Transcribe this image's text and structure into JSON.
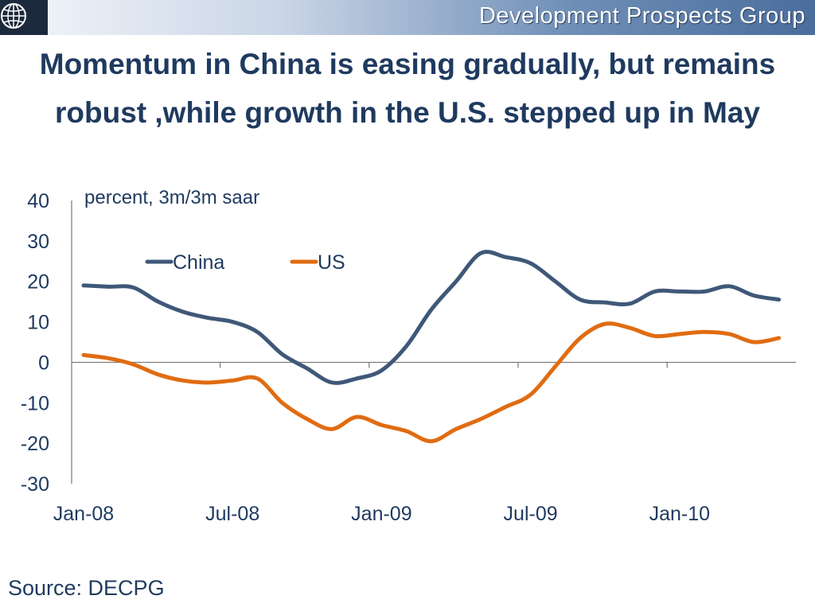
{
  "header": {
    "group_name": "Development Prospects Group",
    "logo_icon": "globe-icon"
  },
  "title": "Momentum in China  is easing gradually, but remains robust ,while  growth in the U.S. stepped up in May",
  "source": "Source: DECPG",
  "colors": {
    "china": "#3f5878",
    "us": "#e06c12",
    "text": "#1f3a5f",
    "axis": "#777777"
  },
  "chart_data": {
    "type": "line",
    "ylabel": "percent, 3m/3m saar",
    "ylim": [
      -30,
      40
    ],
    "yticks": [
      40,
      30,
      20,
      10,
      0,
      -10,
      -20,
      -30
    ],
    "xtick_labels": [
      "Jan-08",
      "Jul-08",
      "Jan-09",
      "Jul-09",
      "Jan-10"
    ],
    "x": [
      "Jan-08",
      "Feb-08",
      "Mar-08",
      "Apr-08",
      "May-08",
      "Jun-08",
      "Jul-08",
      "Aug-08",
      "Sep-08",
      "Oct-08",
      "Nov-08",
      "Dec-08",
      "Jan-09",
      "Feb-09",
      "Mar-09",
      "Apr-09",
      "May-09",
      "Jun-09",
      "Jul-09",
      "Aug-09",
      "Sep-09",
      "Oct-09",
      "Nov-09",
      "Dec-09",
      "Jan-10",
      "Feb-10",
      "Mar-10",
      "Apr-10",
      "May-10"
    ],
    "legend_position": "top-left",
    "series": [
      {
        "name": "China",
        "values": [
          19,
          18.7,
          18.5,
          15,
          12.5,
          11,
          10,
          7.5,
          2,
          -1.5,
          -5,
          -4,
          -2,
          4,
          13,
          20,
          27,
          26,
          24.5,
          20,
          15.5,
          14.8,
          14.5,
          17.5,
          17.5,
          17.5,
          18.8,
          16.5,
          15.5
        ]
      },
      {
        "name": "US",
        "values": [
          1.8,
          1,
          -0.5,
          -3,
          -4.5,
          -5,
          -4.5,
          -4,
          -10,
          -14,
          -16.5,
          -13.5,
          -15.5,
          -17,
          -19.5,
          -16.5,
          -14,
          -11,
          -8,
          -1,
          6,
          9.5,
          8.5,
          6.5,
          7,
          7.5,
          7,
          5,
          6
        ]
      }
    ]
  }
}
